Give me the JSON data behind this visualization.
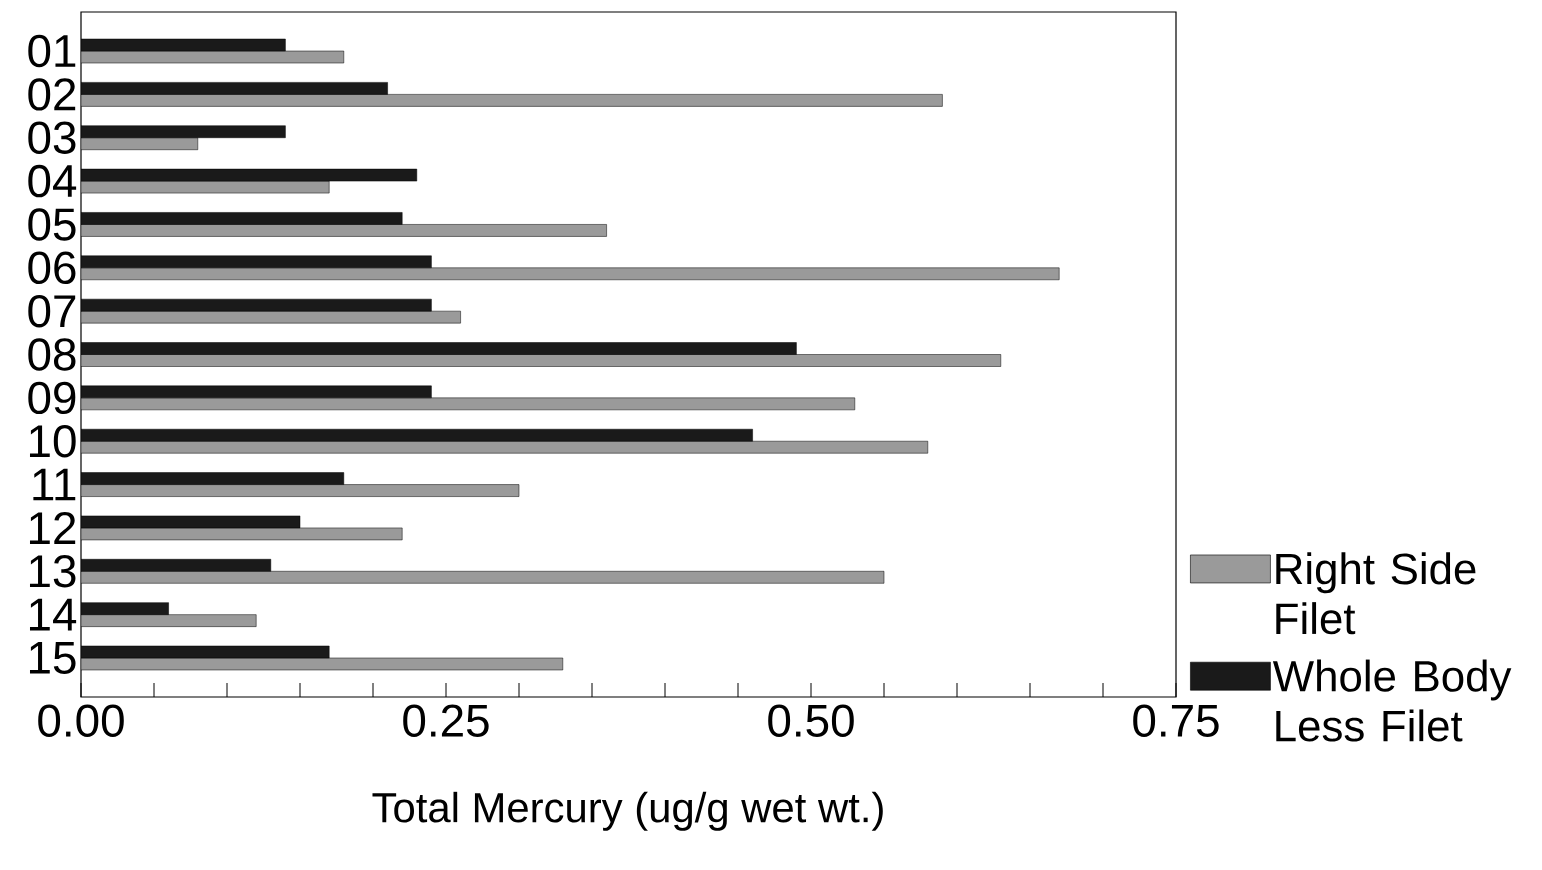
{
  "chart_data": {
    "type": "bar",
    "orientation": "horizontal",
    "xlabel": "Total Mercury (ug/g wet wt.)",
    "categories": [
      "01",
      "02",
      "03",
      "04",
      "05",
      "06",
      "07",
      "08",
      "09",
      "10",
      "11",
      "12",
      "13",
      "14",
      "15"
    ],
    "series": [
      {
        "name": "Right Side Filet",
        "color": "#9a9a9a",
        "values": [
          0.18,
          0.59,
          0.08,
          0.17,
          0.36,
          0.67,
          0.26,
          0.63,
          0.53,
          0.58,
          0.3,
          0.22,
          0.55,
          0.12,
          0.33
        ]
      },
      {
        "name": "Whole Body Less Filet",
        "color": "#1a1a1a",
        "values": [
          0.14,
          0.21,
          0.14,
          0.23,
          0.22,
          0.24,
          0.24,
          0.49,
          0.24,
          0.46,
          0.18,
          0.15,
          0.13,
          0.06,
          0.17
        ]
      }
    ],
    "xlim": [
      0,
      0.75
    ],
    "xticks": [
      {
        "value": 0,
        "label": "0.00"
      },
      {
        "value": 0.05,
        "label": null
      },
      {
        "value": 0.1,
        "label": null
      },
      {
        "value": 0.15,
        "label": null
      },
      {
        "value": 0.2,
        "label": null
      },
      {
        "value": 0.25,
        "label": "0.25"
      },
      {
        "value": 0.3,
        "label": null
      },
      {
        "value": 0.35,
        "label": null
      },
      {
        "value": 0.4,
        "label": null
      },
      {
        "value": 0.45,
        "label": null
      },
      {
        "value": 0.5,
        "label": "0.50"
      },
      {
        "value": 0.55,
        "label": null
      },
      {
        "value": 0.6,
        "label": null
      },
      {
        "value": 0.65,
        "label": null
      },
      {
        "value": 0.7,
        "label": null
      },
      {
        "value": 0.75,
        "label": "0.75"
      }
    ],
    "legend": "bottom right"
  }
}
